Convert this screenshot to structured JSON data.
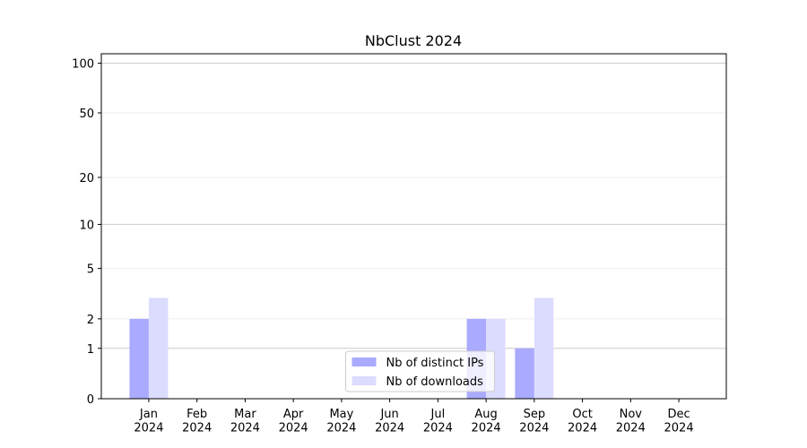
{
  "chart_data": {
    "type": "bar",
    "title": "NbClust 2024",
    "categories": [
      "Jan\n2024",
      "Feb\n2024",
      "Mar\n2024",
      "Apr\n2024",
      "May\n2024",
      "Jun\n2024",
      "Jul\n2024",
      "Aug\n2024",
      "Sep\n2024",
      "Oct\n2024",
      "Nov\n2024",
      "Dec\n2024"
    ],
    "series": [
      {
        "name": "Nb of distinct IPs",
        "color": "#aaaaff",
        "values": [
          2,
          0,
          0,
          0,
          0,
          0,
          0,
          2,
          1,
          0,
          0,
          0
        ]
      },
      {
        "name": "Nb of downloads",
        "color": "#dcdcff",
        "values": [
          3,
          0,
          0,
          0,
          0,
          0,
          0,
          2,
          3,
          0,
          0,
          0
        ]
      }
    ],
    "yscale": "log1p",
    "ylim": [
      0,
      114
    ],
    "yticks": [
      0,
      1,
      2,
      5,
      10,
      20,
      50,
      100
    ],
    "grid": true,
    "legend": "lower center"
  }
}
